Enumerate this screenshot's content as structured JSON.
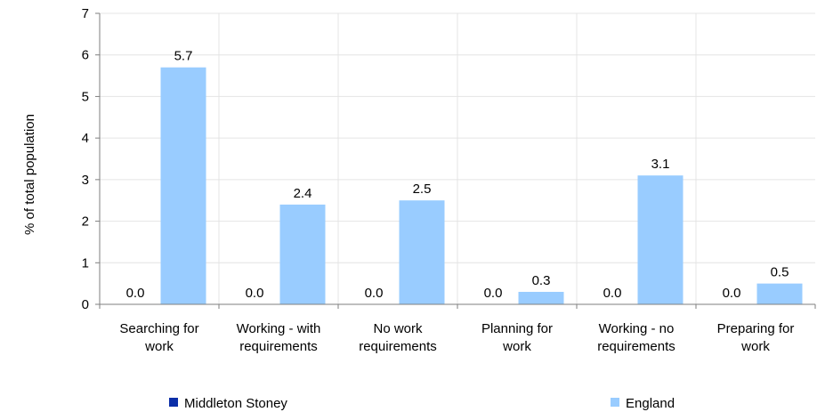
{
  "chart_data": {
    "type": "bar",
    "categories": [
      [
        "Searching for",
        "work"
      ],
      [
        "Working - with",
        "requirements"
      ],
      [
        "No work",
        "requirements"
      ],
      [
        "Planning for",
        "work"
      ],
      [
        "Working - no",
        "requirements"
      ],
      [
        "Preparing for",
        "work"
      ]
    ],
    "series": [
      {
        "name": "Middleton Stoney",
        "color": "#0b2ea8",
        "values": [
          0.0,
          0.0,
          0.0,
          0.0,
          0.0,
          0.0
        ],
        "labels": [
          "0.0",
          "0.0",
          "0.0",
          "0.0",
          "0.0",
          "0.0"
        ]
      },
      {
        "name": "England",
        "color": "#99ccff",
        "values": [
          5.7,
          2.4,
          2.5,
          0.3,
          3.1,
          0.5
        ],
        "labels": [
          "5.7",
          "2.4",
          "2.5",
          "0.3",
          "3.1",
          "0.5"
        ]
      }
    ],
    "ylabel": "% of total population",
    "ylim": [
      0,
      7
    ],
    "yticks": [
      "0",
      "1",
      "2",
      "3",
      "4",
      "5",
      "6",
      "7"
    ],
    "grid": true,
    "legend_position": "bottom"
  }
}
